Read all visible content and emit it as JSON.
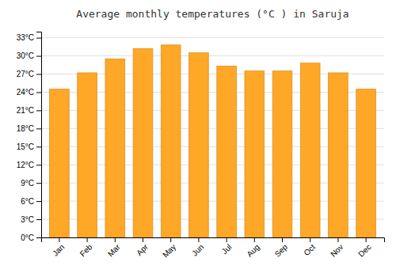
{
  "chart_data": {
    "type": "bar",
    "title": "Average monthly temperatures (°C ) in Saruja",
    "categories": [
      "Jan",
      "Feb",
      "Mar",
      "Apr",
      "May",
      "Jun",
      "Jul",
      "Aug",
      "Sep",
      "Oct",
      "Nov",
      "Dec"
    ],
    "values": [
      24.5,
      27.2,
      29.5,
      31.2,
      31.8,
      30.5,
      28.3,
      27.5,
      27.5,
      28.8,
      27.2,
      24.5
    ],
    "color": "#FFA726",
    "ylim": [
      0,
      34
    ],
    "yticks": [
      {
        "value": 0,
        "label": "0°C"
      },
      {
        "value": 3,
        "label": "3°C"
      },
      {
        "value": 6,
        "label": "6°C"
      },
      {
        "value": 9,
        "label": "9°C"
      },
      {
        "value": 12,
        "label": "12°C"
      },
      {
        "value": 15,
        "label": "15°C"
      },
      {
        "value": 18,
        "label": "18°C"
      },
      {
        "value": 21,
        "label": "21°C"
      },
      {
        "value": 24,
        "label": "24°C"
      },
      {
        "value": 27,
        "label": "27°C"
      },
      {
        "value": 30,
        "label": "30°C"
      },
      {
        "value": 33,
        "label": "33°C"
      }
    ],
    "grid": true
  }
}
